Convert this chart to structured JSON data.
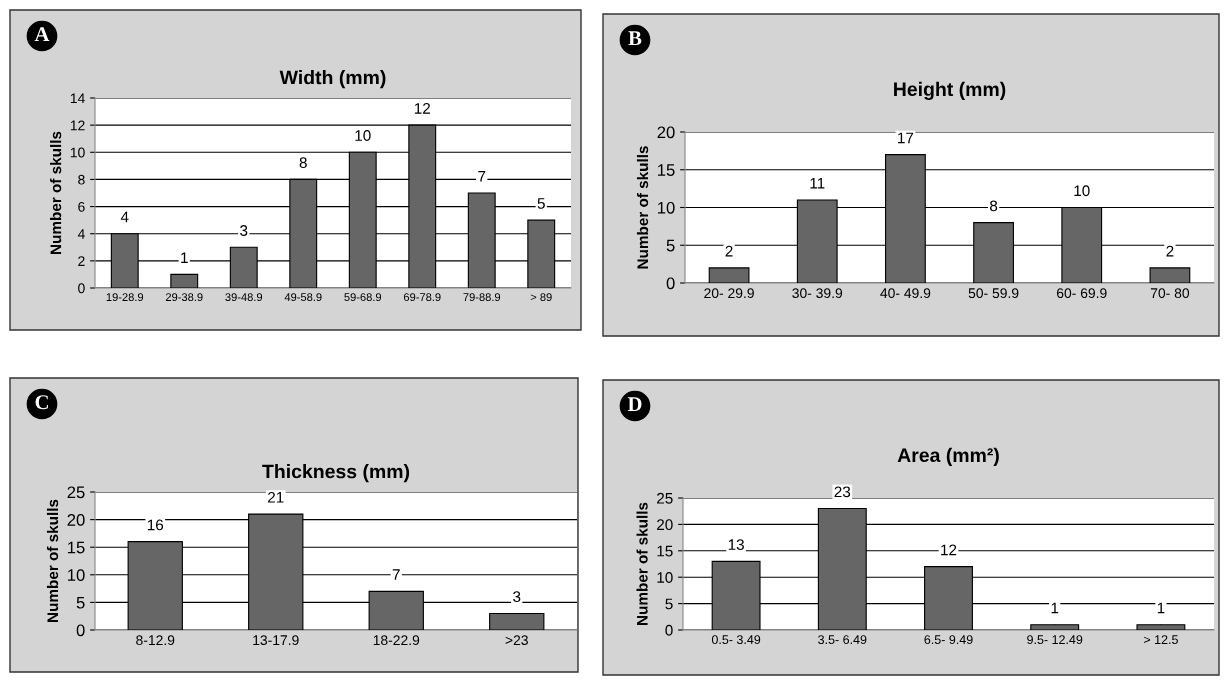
{
  "chart_data": [
    {
      "type": "bar",
      "title": "Width (mm)",
      "ylabel": "Number of skulls",
      "annotations": [
        "A"
      ],
      "categories": [
        "19-28.9",
        "29-38.9",
        "39-48.9",
        "49-58.9",
        "59-68.9",
        "69-78.9",
        "79-88.9",
        "> 89"
      ],
      "values": [
        4,
        1,
        3,
        8,
        10,
        12,
        7,
        5
      ],
      "color": "#666666",
      "ylim": [
        0,
        14
      ],
      "yticks": [
        0,
        2,
        4,
        6,
        8,
        10,
        12,
        14
      ],
      "grid": "y",
      "data_labels": true
    },
    {
      "type": "bar",
      "title": "Height (mm)",
      "ylabel": "Number of skulls",
      "annotations": [
        "B"
      ],
      "categories": [
        "20- 29.9",
        "30- 39.9",
        "40- 49.9",
        "50- 59.9",
        "60- 69.9",
        "70- 80"
      ],
      "values": [
        2,
        11,
        17,
        8,
        10,
        2
      ],
      "color": "#666666",
      "ylim": [
        0,
        20
      ],
      "yticks": [
        0,
        5,
        10,
        15,
        20
      ],
      "grid": "y",
      "data_labels": true
    },
    {
      "type": "bar",
      "title": "Thickness (mm)",
      "ylabel": "Number of skulls",
      "annotations": [
        "C"
      ],
      "categories": [
        "8-12.9",
        "13-17.9",
        "18-22.9",
        ">23"
      ],
      "values": [
        16,
        21,
        7,
        3
      ],
      "color": "#666666",
      "ylim": [
        0,
        25
      ],
      "yticks": [
        0,
        5,
        10,
        15,
        20,
        25
      ],
      "grid": "y",
      "data_labels": true
    },
    {
      "type": "bar",
      "title": "Area (mm²)",
      "ylabel": "Number of skulls",
      "annotations": [
        "D"
      ],
      "categories": [
        "0.5- 3.49",
        "3.5- 6.49",
        "6.5- 9.49",
        "9.5- 12.49",
        "> 12.5"
      ],
      "values": [
        13,
        23,
        12,
        1,
        1
      ],
      "color": "#666666",
      "ylim": [
        0,
        25
      ],
      "yticks": [
        0,
        5,
        10,
        15,
        20,
        25
      ],
      "grid": "y",
      "data_labels": true
    }
  ]
}
